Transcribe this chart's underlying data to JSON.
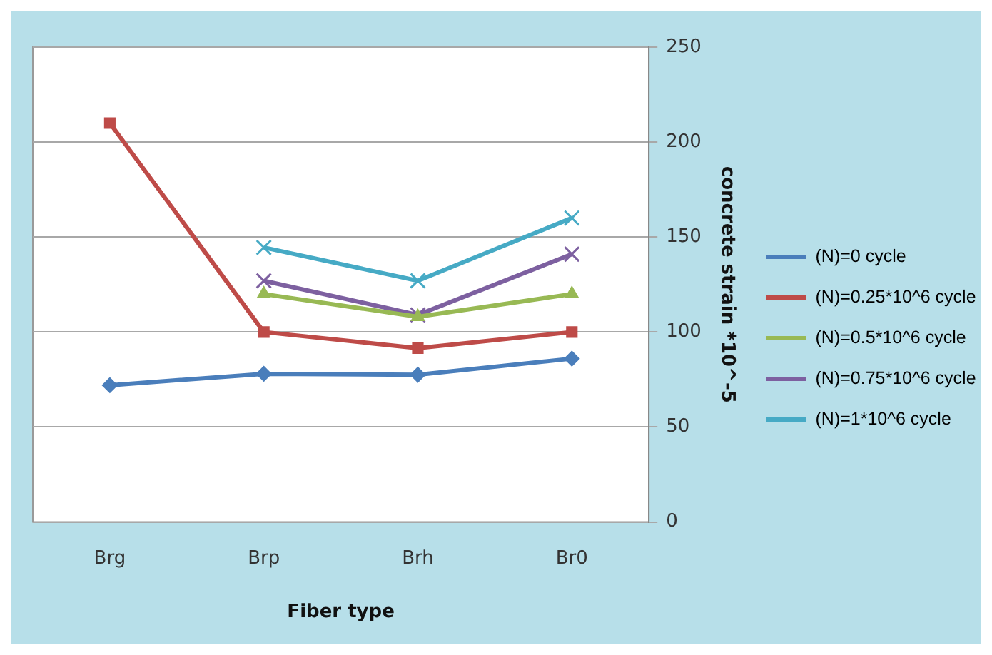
{
  "chart_data": {
    "type": "line",
    "xlabel": "Fiber type",
    "ylabel": "concrete strain *10^-5",
    "categories": [
      "Brg",
      "Brp",
      "Brh",
      "Br0"
    ],
    "series": [
      {
        "name": "(N)=0 cycle",
        "color": "#4a7ebb",
        "marker": "diamond",
        "values": [
          72,
          78,
          77.5,
          86
        ]
      },
      {
        "name": "(N)=0.25*10^6 cycle",
        "color": "#be4b48",
        "marker": "square",
        "values": [
          210,
          100,
          91.5,
          100
        ]
      },
      {
        "name": "(N)=0.5*10^6 cycle",
        "color": "#98b954",
        "marker": "triangle",
        "values": [
          null,
          120,
          108,
          120
        ]
      },
      {
        "name": "(N)=0.75*10^6 cycle",
        "color": "#7d60a0",
        "marker": "cross",
        "values": [
          null,
          127,
          109,
          141
        ]
      },
      {
        "name": "(N)=1*10^6 cycle",
        "color": "#46aac5",
        "marker": "cross",
        "values": [
          null,
          144.5,
          127,
          160
        ]
      }
    ],
    "ylim": [
      0,
      250
    ],
    "yticks": [
      0,
      50,
      100,
      150,
      200,
      250
    ],
    "grid": "y",
    "legend": "right"
  }
}
